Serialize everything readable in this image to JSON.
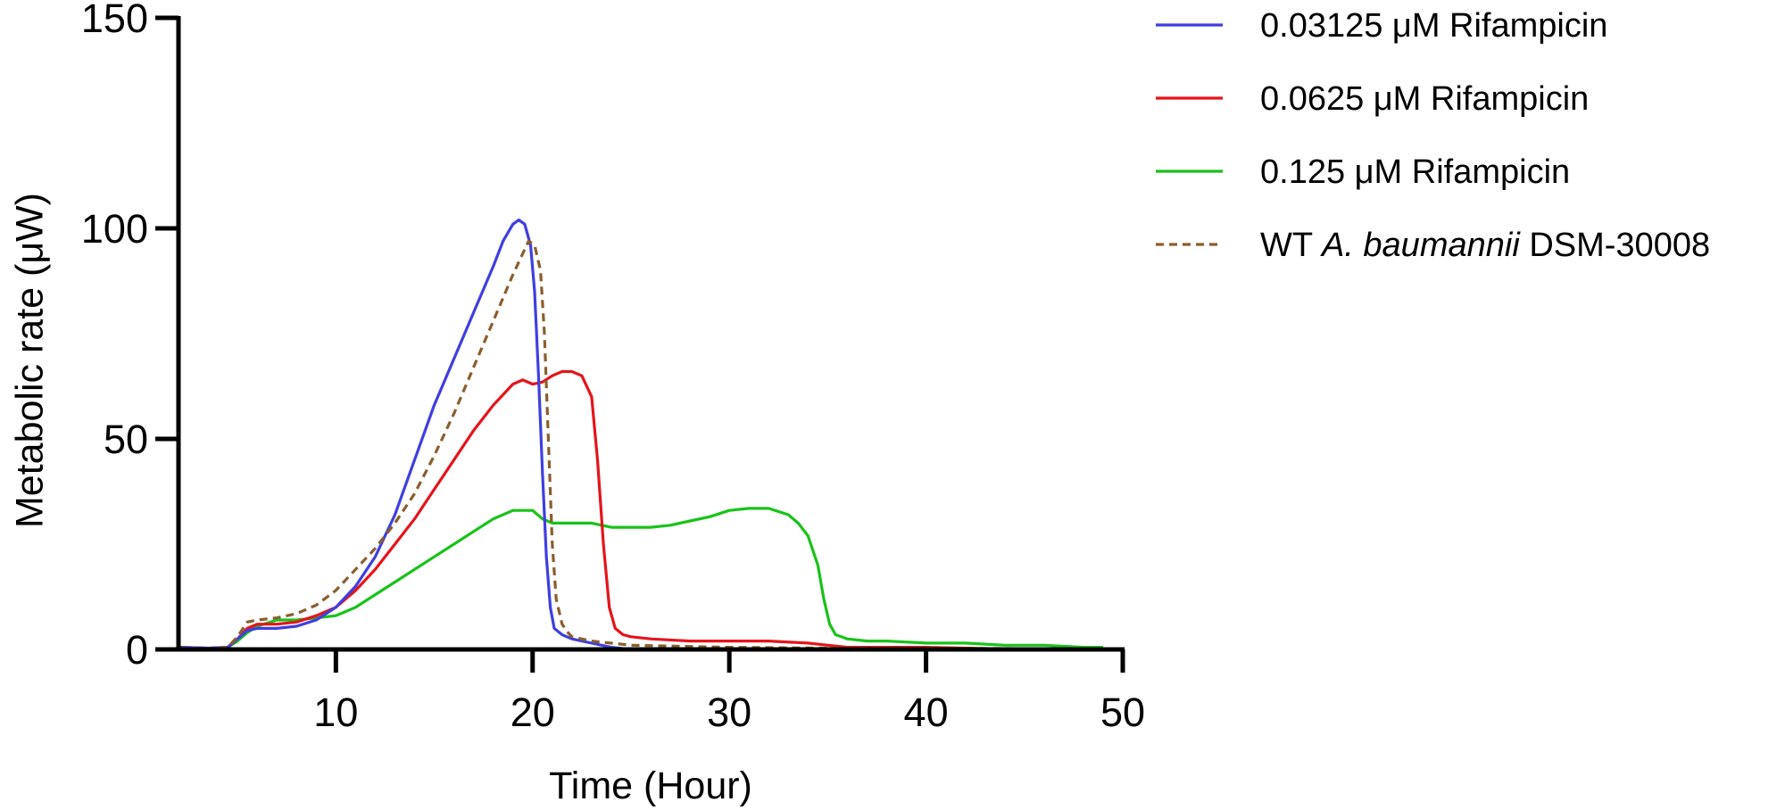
{
  "chart_data": {
    "type": "line",
    "title": "",
    "xlabel": "Time (Hour)",
    "ylabel": "Metabolic rate (μW)",
    "xlim": [
      2,
      50
    ],
    "ylim": [
      0,
      150
    ],
    "xticks": [
      10,
      20,
      30,
      40,
      50
    ],
    "yticks": [
      0,
      50,
      100,
      150
    ],
    "grid": false,
    "legend_position": "top-right",
    "series": [
      {
        "name": "0.03125 μM Rifampicin",
        "label_parts": [
          {
            "text": "0.03125 μM Rifampicin",
            "italic": false
          }
        ],
        "color": "#3f3fe0",
        "dash": "solid",
        "x": [
          2,
          3.5,
          4.5,
          5,
          5.5,
          6,
          7,
          8,
          9,
          10,
          11,
          12,
          13,
          14,
          15,
          16,
          17,
          18,
          18.5,
          19,
          19.3,
          19.6,
          19.9,
          20.1,
          20.3,
          20.5,
          20.7,
          20.9,
          21.1,
          21.5,
          22,
          23,
          24,
          25
        ],
        "y": [
          0.5,
          0.3,
          0.5,
          2.5,
          4.5,
          5,
          5,
          5.5,
          7,
          10,
          15,
          22,
          32,
          45,
          58,
          69,
          80,
          91,
          97,
          101,
          102,
          101,
          96,
          85,
          65,
          42,
          22,
          10,
          5,
          3.5,
          2.5,
          1.5,
          0.5,
          0
        ]
      },
      {
        "name": "0.0625 μM Rifampicin",
        "label_parts": [
          {
            "text": "0.0625 μM Rifampicin",
            "italic": false
          }
        ],
        "color": "#e5141b",
        "dash": "solid",
        "x": [
          2,
          3.5,
          4.5,
          5,
          5.5,
          6,
          7,
          8,
          9,
          10,
          11,
          12,
          13,
          14,
          15,
          16,
          17,
          18,
          19,
          19.5,
          20,
          20.5,
          21,
          21.5,
          22,
          22.5,
          23,
          23.3,
          23.6,
          23.9,
          24.2,
          24.6,
          25,
          26,
          28,
          30,
          32,
          34,
          35,
          36,
          40,
          45
        ],
        "y": [
          0.5,
          0.3,
          0.5,
          2.5,
          5,
          6,
          6,
          6.5,
          8,
          10,
          14,
          19,
          25,
          31,
          38,
          45,
          52,
          58,
          63,
          64,
          63,
          63.5,
          65,
          66,
          66,
          65,
          60,
          45,
          25,
          10,
          5,
          3.5,
          3,
          2.5,
          2,
          2,
          2,
          1.5,
          1,
          0.5,
          0.5,
          0
        ]
      },
      {
        "name": "0.125 μM Rifampicin",
        "label_parts": [
          {
            "text": "0.125 μM Rifampicin",
            "italic": false
          }
        ],
        "color": "#19c219",
        "dash": "solid",
        "x": [
          2,
          3.5,
          4.5,
          5,
          5.5,
          6,
          7,
          8,
          9,
          10,
          11,
          12,
          13,
          14,
          15,
          16,
          17,
          18,
          19,
          20,
          20.5,
          21,
          22,
          23,
          24,
          25,
          26,
          27,
          28,
          29,
          30,
          31,
          32,
          33,
          33.5,
          34,
          34.5,
          34.8,
          35.1,
          35.4,
          35.7,
          36,
          37,
          38,
          40,
          42,
          44,
          46,
          48,
          49
        ],
        "y": [
          0.5,
          0.3,
          0.5,
          2,
          4,
          5.5,
          7,
          7,
          7.5,
          8,
          10,
          13,
          16,
          19,
          22,
          25,
          28,
          31,
          33,
          33,
          31,
          30,
          30,
          30,
          29,
          29,
          29,
          29.5,
          30.5,
          31.5,
          33,
          33.5,
          33.5,
          32,
          30,
          27,
          20,
          12,
          6,
          3.5,
          3,
          2.5,
          2,
          2,
          1.5,
          1.5,
          1,
          1,
          0.5,
          0.5
        ]
      },
      {
        "name": "WT A. baumannii DSM-30008",
        "label_parts": [
          {
            "text": "WT ",
            "italic": false
          },
          {
            "text": "A. baumannii",
            "italic": true
          },
          {
            "text": " DSM-30008",
            "italic": false
          }
        ],
        "color": "#8b5e2e",
        "dash": "dashed",
        "x": [
          2,
          3.5,
          4.5,
          5,
          5.5,
          6,
          7,
          8,
          9,
          10,
          11,
          12,
          13,
          14,
          15,
          16,
          17,
          18,
          19,
          19.5,
          19.8,
          20.1,
          20.4,
          20.6,
          20.8,
          21,
          21.2,
          21.5,
          21.8,
          22,
          23,
          25,
          30,
          35,
          40,
          45,
          49
        ],
        "y": [
          0.3,
          0.2,
          0.5,
          3,
          6.5,
          7,
          7.5,
          8.5,
          10.5,
          14,
          19,
          24,
          30,
          37,
          46,
          56,
          67,
          78,
          89,
          94,
          97,
          96,
          90,
          75,
          50,
          25,
          12,
          6,
          4,
          3,
          2,
          1,
          0.5,
          0.3,
          0.3,
          0.2,
          0.2
        ]
      }
    ]
  }
}
